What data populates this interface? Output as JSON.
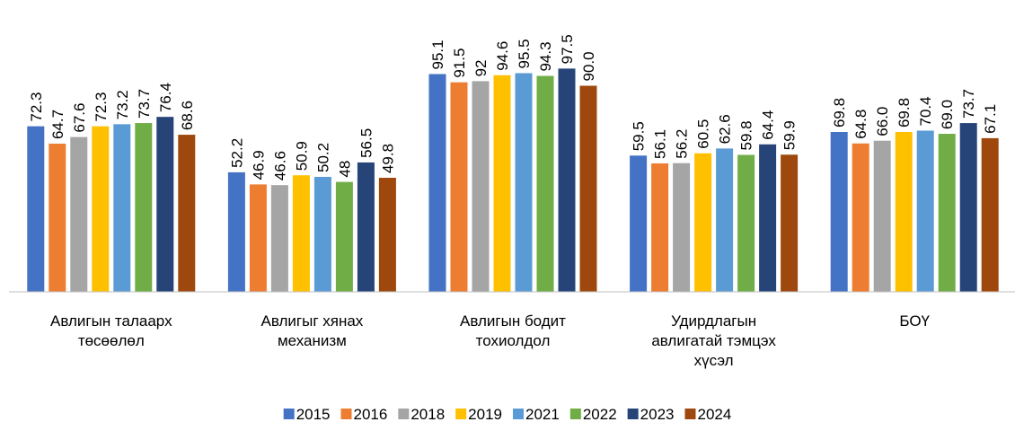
{
  "chart_data": {
    "type": "bar",
    "categories": [
      [
        "Авлигын талаарх",
        "төсөөлөл"
      ],
      [
        "Авлигыг хянах",
        "механизм"
      ],
      [
        "Авлигын бодит",
        "тохиолдол"
      ],
      [
        "Удирдлагын",
        "авлигатай тэмцэх",
        "хүсэл"
      ],
      [
        "БОҮ"
      ]
    ],
    "ylim": [
      0,
      100
    ],
    "series": [
      {
        "name": "2015",
        "color": "#4472c4",
        "values": [
          72.3,
          52.2,
          95.1,
          59.5,
          69.8
        ],
        "value_labels": [
          "72.3",
          "52.2",
          "95.1",
          "59.5",
          "69.8"
        ]
      },
      {
        "name": "2016",
        "color": "#ed7d31",
        "values": [
          64.7,
          46.9,
          91.5,
          56.1,
          64.8
        ],
        "value_labels": [
          "64.7",
          "46.9",
          "91.5",
          "56.1",
          "64.8"
        ]
      },
      {
        "name": "2018",
        "color": "#a5a5a5",
        "values": [
          67.6,
          46.6,
          92,
          56.2,
          66.0
        ],
        "value_labels": [
          "67.6",
          "46.6",
          "92",
          "56.2",
          "66.0"
        ]
      },
      {
        "name": "2019",
        "color": "#ffc000",
        "values": [
          72.3,
          50.9,
          94.6,
          60.5,
          69.8
        ],
        "value_labels": [
          "72.3",
          "50.9",
          "94.6",
          "60.5",
          "69.8"
        ]
      },
      {
        "name": "2021",
        "color": "#5b9bd5",
        "values": [
          73.2,
          50.2,
          95.5,
          62.6,
          70.4
        ],
        "value_labels": [
          "73.2",
          "50.2",
          "95.5",
          "62.6",
          "70.4"
        ]
      },
      {
        "name": "2022",
        "color": "#70ad47",
        "values": [
          73.7,
          48,
          94.3,
          59.8,
          69.0
        ],
        "value_labels": [
          "73.7",
          "48",
          "94.3",
          "59.8",
          "69.0"
        ]
      },
      {
        "name": "2023",
        "color": "#264478",
        "values": [
          76.4,
          56.5,
          97.5,
          64.4,
          73.7
        ],
        "value_labels": [
          "76.4",
          "56.5",
          "97.5",
          "64.4",
          "73.7"
        ]
      },
      {
        "name": "2024",
        "color": "#9e480e",
        "values": [
          68.6,
          49.8,
          90.0,
          59.9,
          67.1
        ],
        "value_labels": [
          "68.6",
          "49.8",
          "90.0",
          "59.9",
          "67.1"
        ]
      }
    ],
    "legend": "bottom"
  }
}
